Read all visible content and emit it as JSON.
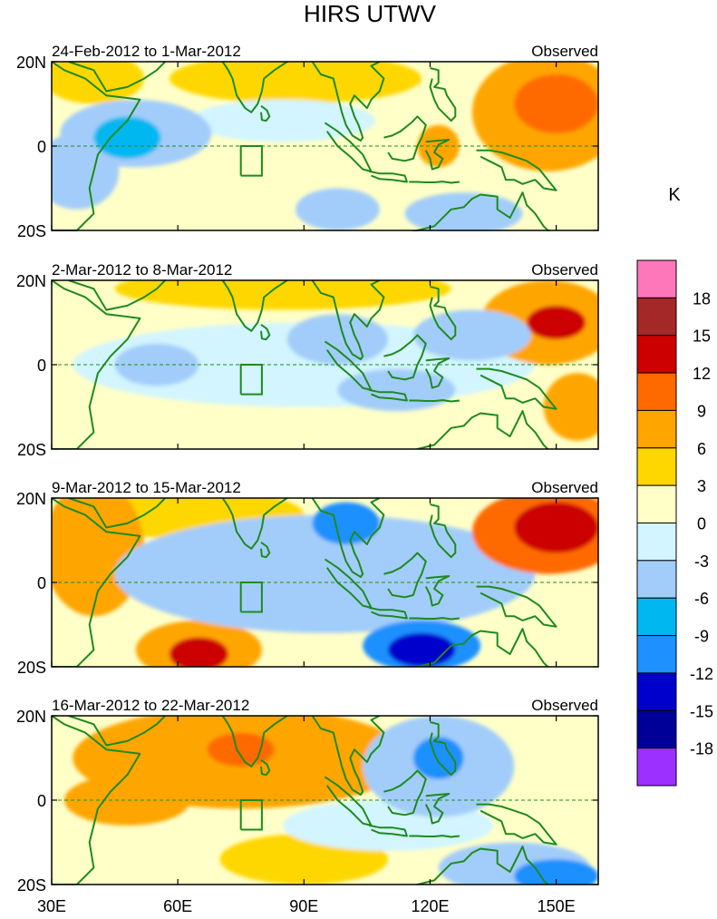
{
  "chart_data": {
    "type": "heatmap",
    "title": "HIRS UTWV",
    "units_label": "K",
    "x_ticks": [
      "30E",
      "60E",
      "90E",
      "120E",
      "150E"
    ],
    "x_tick_values": [
      30,
      60,
      90,
      120,
      150
    ],
    "x_range": [
      30,
      160
    ],
    "y_ticks": [
      "20N",
      "0",
      "20S"
    ],
    "y_tick_values": [
      20,
      0,
      -20
    ],
    "y_range": [
      -20,
      20
    ],
    "colorbar": {
      "levels": [
        "18",
        "15",
        "12",
        "9",
        "6",
        "3",
        "0",
        "-3",
        "-6",
        "-9",
        "-12",
        "-15",
        "-18"
      ],
      "colors": [
        "#ff77bb",
        "#a52828",
        "#cc0000",
        "#ff6a00",
        "#ffa500",
        "#ffd700",
        "#ffffc8",
        "#d2f5ff",
        "#a2cdfa",
        "#00b7f0",
        "#1e90ff",
        "#0000cd",
        "#000099",
        "#9b30ff"
      ]
    },
    "panels": [
      {
        "period": "24-Feb-2012 to 1-Mar-2012",
        "label": "Observed",
        "blobs": [
          {
            "lon": 148,
            "lat": 8,
            "rx": 18,
            "ry": 14,
            "v": 6
          },
          {
            "lon": 150,
            "lat": 10,
            "rx": 10,
            "ry": 7,
            "v": 9
          },
          {
            "lon": 88,
            "lat": 16,
            "rx": 30,
            "ry": 6,
            "v": 3
          },
          {
            "lon": 40,
            "lat": 16,
            "rx": 12,
            "ry": 6,
            "v": 3
          },
          {
            "lon": 122,
            "lat": 0,
            "rx": 5,
            "ry": 5,
            "v": 6
          },
          {
            "lon": 50,
            "lat": 3,
            "rx": 18,
            "ry": 8,
            "v": -6
          },
          {
            "lon": 48,
            "lat": 2,
            "rx": 8,
            "ry": 5,
            "v": -9
          },
          {
            "lon": 36,
            "lat": -6,
            "rx": 10,
            "ry": 9,
            "v": -6
          },
          {
            "lon": 85,
            "lat": 6,
            "rx": 22,
            "ry": 5,
            "v": -3
          },
          {
            "lon": 98,
            "lat": -15,
            "rx": 10,
            "ry": 5,
            "v": -6
          },
          {
            "lon": 128,
            "lat": -16,
            "rx": 14,
            "ry": 5,
            "v": -6
          }
        ]
      },
      {
        "period": "2-Mar-2012 to 8-Mar-2012",
        "label": "Observed",
        "blobs": [
          {
            "lon": 85,
            "lat": 18,
            "rx": 40,
            "ry": 5,
            "v": 3
          },
          {
            "lon": 148,
            "lat": 10,
            "rx": 16,
            "ry": 10,
            "v": 6
          },
          {
            "lon": 150,
            "lat": 10,
            "rx": 7,
            "ry": 4,
            "v": 12
          },
          {
            "lon": 155,
            "lat": -10,
            "rx": 8,
            "ry": 8,
            "v": 6
          },
          {
            "lon": 90,
            "lat": 0,
            "rx": 55,
            "ry": 10,
            "v": -3
          },
          {
            "lon": 98,
            "lat": 6,
            "rx": 12,
            "ry": 6,
            "v": -6
          },
          {
            "lon": 130,
            "lat": 7,
            "rx": 14,
            "ry": 6,
            "v": -6
          },
          {
            "lon": 112,
            "lat": -6,
            "rx": 14,
            "ry": 5,
            "v": -6
          },
          {
            "lon": 55,
            "lat": 0,
            "rx": 10,
            "ry": 5,
            "v": -6
          }
        ]
      },
      {
        "period": "9-Mar-2012 to 15-Mar-2012",
        "label": "Observed",
        "blobs": [
          {
            "lon": 40,
            "lat": 8,
            "rx": 12,
            "ry": 16,
            "v": 6
          },
          {
            "lon": 65,
            "lat": 16,
            "rx": 25,
            "ry": 6,
            "v": 3
          },
          {
            "lon": 148,
            "lat": 12,
            "rx": 18,
            "ry": 10,
            "v": 9
          },
          {
            "lon": 150,
            "lat": 13,
            "rx": 10,
            "ry": 6,
            "v": 12
          },
          {
            "lon": 65,
            "lat": -16,
            "rx": 15,
            "ry": 7,
            "v": 6
          },
          {
            "lon": 65,
            "lat": -17,
            "rx": 7,
            "ry": 4,
            "v": 12
          },
          {
            "lon": 95,
            "lat": 2,
            "rx": 50,
            "ry": 14,
            "v": -6
          },
          {
            "lon": 100,
            "lat": 14,
            "rx": 8,
            "ry": 5,
            "v": -12
          },
          {
            "lon": 118,
            "lat": -15,
            "rx": 14,
            "ry": 6,
            "v": -12
          },
          {
            "lon": 118,
            "lat": -16,
            "rx": 8,
            "ry": 4,
            "v": -15
          }
        ]
      },
      {
        "period": "16-Mar-2012 to 22-Mar-2012",
        "label": "Observed",
        "blobs": [
          {
            "lon": 75,
            "lat": 10,
            "rx": 40,
            "ry": 12,
            "v": 6
          },
          {
            "lon": 75,
            "lat": 12,
            "rx": 8,
            "ry": 4,
            "v": 9
          },
          {
            "lon": 48,
            "lat": 0,
            "rx": 15,
            "ry": 6,
            "v": 6
          },
          {
            "lon": 90,
            "lat": -14,
            "rx": 20,
            "ry": 6,
            "v": 3
          },
          {
            "lon": 122,
            "lat": 8,
            "rx": 18,
            "ry": 12,
            "v": -6
          },
          {
            "lon": 122,
            "lat": 10,
            "rx": 6,
            "ry": 5,
            "v": -12
          },
          {
            "lon": 140,
            "lat": -16,
            "rx": 18,
            "ry": 6,
            "v": -6
          },
          {
            "lon": 150,
            "lat": -18,
            "rx": 10,
            "ry": 4,
            "v": -12
          },
          {
            "lon": 110,
            "lat": -6,
            "rx": 25,
            "ry": 6,
            "v": -3
          }
        ]
      }
    ]
  }
}
